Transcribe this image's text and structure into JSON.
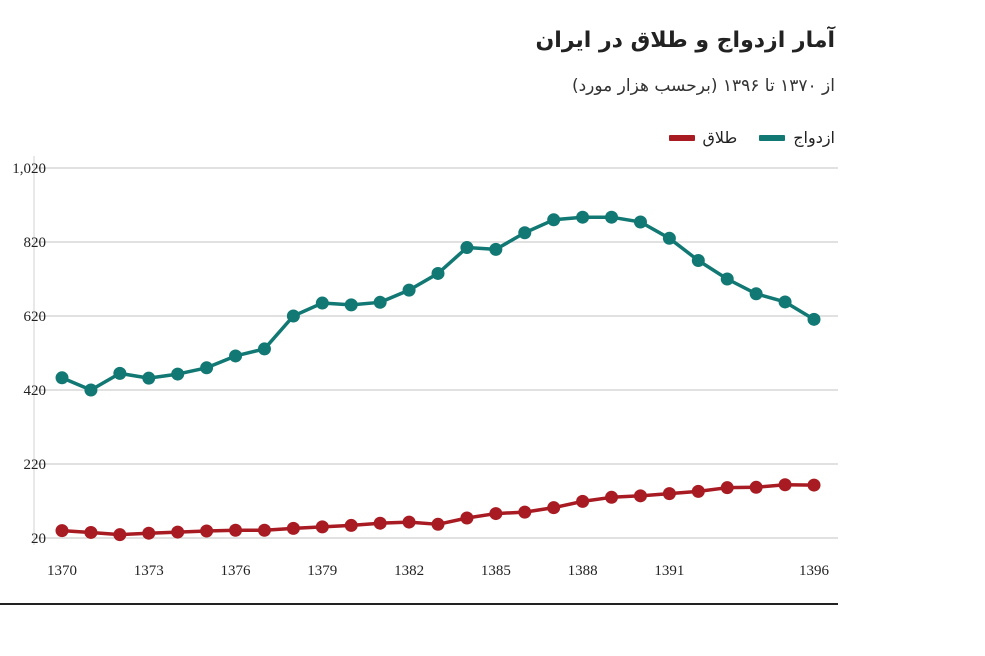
{
  "chart_data": {
    "type": "line",
    "title": "آمار ازدواج و طلاق در ایران",
    "subtitle": "از ۱۳۷۰ تا ۱۳۹۶ (برحسب هزار مورد)",
    "xlabel": "",
    "ylabel": "",
    "x": [
      1370,
      1371,
      1372,
      1373,
      1374,
      1375,
      1376,
      1377,
      1378,
      1379,
      1380,
      1381,
      1382,
      1383,
      1384,
      1385,
      1386,
      1387,
      1388,
      1389,
      1390,
      1391,
      1392,
      1393,
      1394,
      1395,
      1396
    ],
    "x_tick_labels": [
      "1370",
      "1373",
      "1376",
      "1379",
      "1382",
      "1385",
      "1388",
      "1391",
      "1396"
    ],
    "y_tick_labels": [
      "20",
      "220",
      "420",
      "620",
      "820",
      "1,020"
    ],
    "y_ticks": [
      20,
      220,
      420,
      620,
      820,
      1020
    ],
    "ylim": [
      20,
      1020
    ],
    "grid": true,
    "legend_position": "top-right",
    "series": [
      {
        "name": "ازدواج",
        "color": "#117873",
        "values": [
          453,
          420,
          465,
          452,
          463,
          480,
          512,
          531,
          620,
          655,
          650,
          657,
          690,
          735,
          805,
          800,
          845,
          880,
          887,
          887,
          874,
          830,
          770,
          720,
          680,
          658,
          611
        ]
      },
      {
        "name": "طلاق",
        "color": "#a81b22",
        "values": [
          40,
          35,
          29,
          33,
          36,
          39,
          41,
          41,
          46,
          50,
          54,
          60,
          63,
          57,
          74,
          86,
          90,
          102,
          119,
          130,
          134,
          140,
          146,
          156,
          157,
          164,
          163
        ]
      }
    ]
  }
}
